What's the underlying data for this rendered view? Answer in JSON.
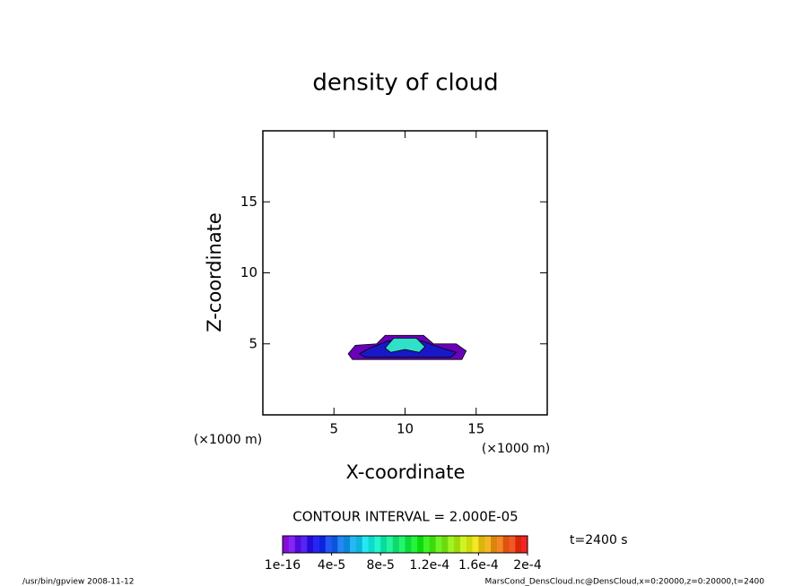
{
  "chart_data": {
    "type": "contour",
    "title": "density of cloud",
    "xlabel": "X-coordinate",
    "ylabel": "Z-coordinate",
    "xunit": "(×1000 m)",
    "yunit": "(×1000 m)",
    "xlim": [
      0,
      20
    ],
    "ylim": [
      0,
      20
    ],
    "xticks": [
      5,
      10,
      15
    ],
    "yticks": [
      5,
      10,
      15
    ],
    "regions": [
      {
        "color": "#6a00b8",
        "x": [
          6,
          6.5,
          8,
          8.6,
          11.3,
          12,
          13.6,
          14.3,
          14,
          6.3
        ],
        "y": [
          4.3,
          4.9,
          5.0,
          5.6,
          5.6,
          5.0,
          5.0,
          4.5,
          3.9,
          3.9
        ]
      },
      {
        "color": "#1818c8",
        "x": [
          6.8,
          7.5,
          8.8,
          11.2,
          12.6,
          13.6,
          13.2,
          7.2
        ],
        "y": [
          4.3,
          4.7,
          5.2,
          5.2,
          4.7,
          4.4,
          4.05,
          4.05
        ]
      },
      {
        "color": "#30e0c8",
        "x": [
          8.6,
          9.2,
          10.8,
          11.4,
          11.0,
          10.0,
          9.0
        ],
        "y": [
          4.7,
          5.4,
          5.4,
          4.8,
          4.4,
          4.6,
          4.4
        ]
      }
    ],
    "contour_interval": "CONTOUR INTERVAL = 2.000E-05",
    "time": "t=2400 s",
    "colorbar": {
      "range": [
        1e-16,
        0.0002
      ],
      "ticks": [
        {
          "value": 1e-16,
          "label": "1e-16"
        },
        {
          "value": 4e-05,
          "label": "4e-5"
        },
        {
          "value": 8e-05,
          "label": "8e-5"
        },
        {
          "value": 0.00012,
          "label": "1.2e-4"
        },
        {
          "value": 0.00016,
          "label": "1.6e-4"
        },
        {
          "value": 0.0002,
          "label": "2e-4"
        }
      ]
    },
    "footer_left": "/usr/bin/gpview   2008-11-12",
    "footer_right": "MarsCond_DensCloud.nc@DensCloud,x=0:20000,z=0:20000,t=2400"
  }
}
